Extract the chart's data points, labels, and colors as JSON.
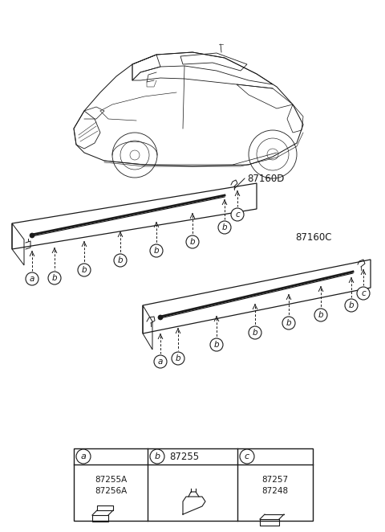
{
  "background_color": "#ffffff",
  "fig_width": 4.8,
  "fig_height": 6.62,
  "dpi": 100,
  "label_87160D": "87160D",
  "label_87160C": "87160C",
  "part_a_codes": "87255A\n87256A",
  "part_b_code": "87255",
  "part_c_codes": "87257\n87248",
  "dark": "#1a1a1a",
  "lw_main": 0.9,
  "lw_thin": 0.6,
  "circle_r": 8
}
